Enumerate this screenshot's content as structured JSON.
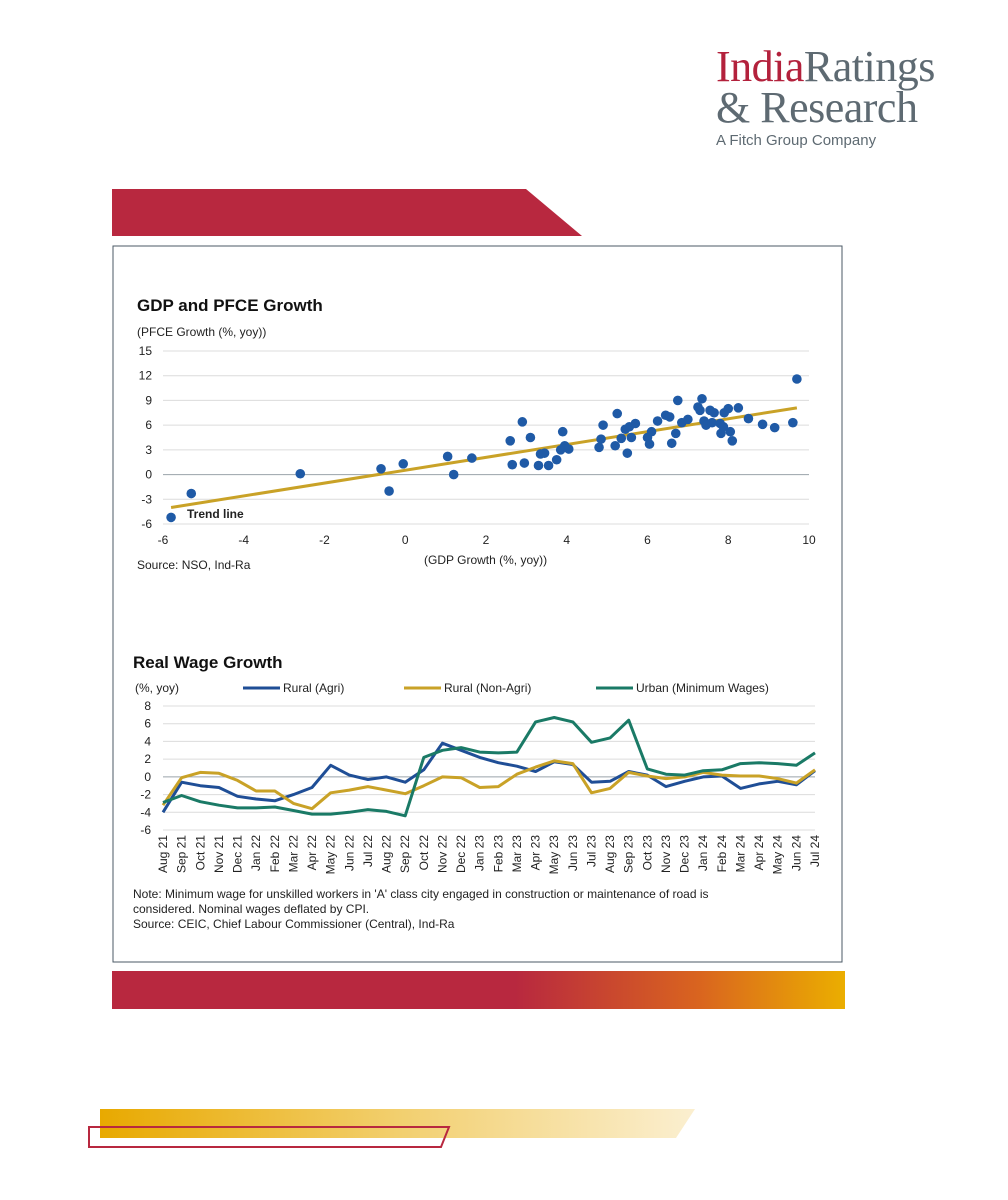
{
  "brand": {
    "name_part1": "India",
    "name_part2": "Ratings",
    "name_line2": "& Research",
    "tagline": "A Fitch Group Company",
    "color_red": "#b3213c",
    "color_gray": "#5e6a72",
    "color_gold": "#e8a900"
  },
  "chart_data": [
    {
      "type": "scatter",
      "title": "GDP and PFCE Growth",
      "xlabel": "(GDP Growth (%, yoy))",
      "ylabel": "(PFCE Growth (%, yoy))",
      "xlim": [
        -6,
        10
      ],
      "ylim": [
        -6,
        15
      ],
      "xticks": [
        "-6",
        "-4",
        "-2",
        "0",
        "2",
        "4",
        "6",
        "8",
        "10"
      ],
      "yticks": [
        "15",
        "12",
        "9",
        "6",
        "3",
        "0",
        "-3",
        "-6"
      ],
      "grid": "horizontal",
      "source": "Source: NSO, Ind-Ra",
      "trend_label": "Trend line",
      "trend": {
        "x": [
          -5.8,
          9.7
        ],
        "y": [
          -4.0,
          8.1
        ]
      },
      "point_color": "#1f5aa6",
      "trend_color": "#c9a227",
      "points": [
        [
          -5.8,
          -5.2
        ],
        [
          -5.3,
          -2.3
        ],
        [
          -2.6,
          0.1
        ],
        [
          -0.6,
          0.7
        ],
        [
          -0.4,
          -2.0
        ],
        [
          -0.05,
          1.3
        ],
        [
          1.05,
          2.2
        ],
        [
          1.2,
          0.0
        ],
        [
          1.65,
          2.0
        ],
        [
          2.6,
          4.1
        ],
        [
          2.65,
          1.2
        ],
        [
          2.9,
          6.4
        ],
        [
          2.95,
          1.4
        ],
        [
          3.1,
          4.5
        ],
        [
          3.3,
          1.1
        ],
        [
          3.35,
          2.5
        ],
        [
          3.45,
          2.6
        ],
        [
          3.55,
          1.1
        ],
        [
          3.75,
          1.8
        ],
        [
          3.85,
          3.0
        ],
        [
          3.9,
          5.2
        ],
        [
          3.95,
          3.5
        ],
        [
          4.05,
          3.1
        ],
        [
          4.8,
          3.3
        ],
        [
          4.85,
          4.3
        ],
        [
          4.9,
          6.0
        ],
        [
          5.2,
          3.5
        ],
        [
          5.25,
          7.4
        ],
        [
          5.35,
          4.4
        ],
        [
          5.45,
          5.5
        ],
        [
          5.5,
          2.6
        ],
        [
          5.55,
          5.8
        ],
        [
          5.6,
          4.5
        ],
        [
          5.7,
          6.2
        ],
        [
          6.0,
          4.5
        ],
        [
          6.05,
          3.7
        ],
        [
          6.1,
          5.2
        ],
        [
          6.25,
          6.5
        ],
        [
          6.45,
          7.2
        ],
        [
          6.55,
          7.0
        ],
        [
          6.6,
          3.8
        ],
        [
          6.7,
          5.0
        ],
        [
          6.75,
          9.0
        ],
        [
          6.85,
          6.3
        ],
        [
          7.0,
          6.7
        ],
        [
          7.25,
          8.2
        ],
        [
          7.3,
          7.8
        ],
        [
          7.35,
          9.2
        ],
        [
          7.4,
          6.5
        ],
        [
          7.45,
          6.0
        ],
        [
          7.55,
          7.8
        ],
        [
          7.6,
          6.3
        ],
        [
          7.65,
          7.5
        ],
        [
          7.8,
          6.2
        ],
        [
          7.82,
          5.0
        ],
        [
          7.88,
          5.8
        ],
        [
          7.9,
          7.5
        ],
        [
          8.0,
          8.0
        ],
        [
          8.05,
          5.2
        ],
        [
          8.1,
          4.1
        ],
        [
          8.25,
          8.1
        ],
        [
          8.5,
          6.8
        ],
        [
          8.85,
          6.1
        ],
        [
          9.15,
          5.7
        ],
        [
          9.6,
          6.3
        ],
        [
          9.7,
          11.6
        ]
      ]
    },
    {
      "type": "line",
      "title": "Real Wage Growth",
      "ylabel": "(%, yoy)",
      "ylim": [
        -6,
        8
      ],
      "yticks": [
        "8",
        "6",
        "4",
        "2",
        "0",
        "-2",
        "-4",
        "-6"
      ],
      "categories": [
        "Aug 21",
        "Sep 21",
        "Oct 21",
        "Nov 21",
        "Dec 21",
        "Jan 22",
        "Feb 22",
        "Mar 22",
        "Apr 22",
        "May 22",
        "Jun 22",
        "Jul 22",
        "Aug 22",
        "Sep 22",
        "Oct 22",
        "Nov 22",
        "Dec 22",
        "Jan 23",
        "Feb 23",
        "Mar 23",
        "Apr 23",
        "May 23",
        "Jun 23",
        "Jul 23",
        "Aug 23",
        "Sep 23",
        "Oct 23",
        "Nov 23",
        "Dec 23",
        "Jan 24",
        "Feb 24",
        "Mar 24",
        "Apr 24",
        "May 24",
        "Jun 24",
        "Jul 24"
      ],
      "series": [
        {
          "name": "Rural (Agri)",
          "color": "#1f4e96",
          "values": [
            -4.0,
            -0.6,
            -1.0,
            -1.2,
            -2.2,
            -2.5,
            -2.7,
            -2.0,
            -1.2,
            1.3,
            0.2,
            -0.3,
            0.0,
            -0.6,
            0.8,
            3.8,
            3.0,
            2.2,
            1.6,
            1.2,
            0.6,
            1.7,
            1.4,
            -0.6,
            -0.5,
            0.6,
            0.2,
            -1.1,
            -0.5,
            0.0,
            0.1,
            -1.3,
            -0.8,
            -0.5,
            -0.9,
            0.7
          ]
        },
        {
          "name": "Rural (Non-Agri)",
          "color": "#c9a227",
          "values": [
            -3.2,
            -0.1,
            0.5,
            0.4,
            -0.4,
            -1.6,
            -1.6,
            -3.0,
            -3.6,
            -1.8,
            -1.5,
            -1.1,
            -1.5,
            -1.9,
            -1.0,
            0.0,
            -0.1,
            -1.2,
            -1.1,
            0.3,
            1.1,
            1.8,
            1.5,
            -1.8,
            -1.3,
            0.5,
            0.1,
            -0.2,
            0.0,
            0.5,
            0.2,
            0.1,
            0.1,
            -0.2,
            -0.7,
            0.8
          ]
        },
        {
          "name": "Urban (Minimum Wages)",
          "color": "#1a7a66",
          "values": [
            -2.9,
            -2.1,
            -2.8,
            -3.2,
            -3.5,
            -3.5,
            -3.4,
            -3.8,
            -4.2,
            -4.2,
            -4.0,
            -3.7,
            -3.9,
            -4.4,
            2.2,
            3.0,
            3.3,
            2.8,
            2.7,
            2.8,
            6.2,
            6.7,
            6.2,
            3.9,
            4.4,
            6.4,
            0.9,
            0.3,
            0.2,
            0.7,
            0.8,
            1.5,
            1.6,
            1.5,
            1.3,
            2.7
          ]
        }
      ],
      "note": "Note: Minimum wage for unskilled workers in 'A' class city engaged in construction or maintenance of road is",
      "note_line2": "considered. Nominal wages deflated by CPI.",
      "source": "Source: CEIC, Chief Labour Commissioner (Central), Ind-Ra"
    }
  ]
}
